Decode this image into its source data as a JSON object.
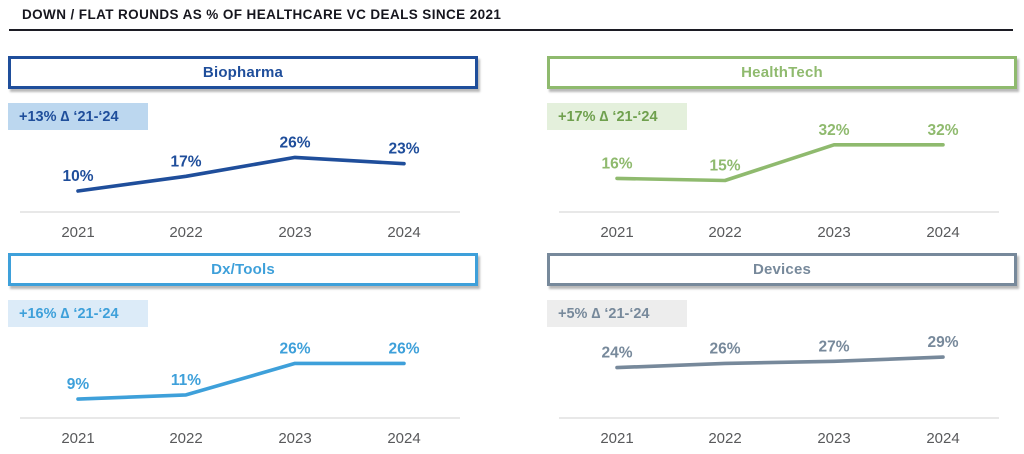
{
  "page_title": "DOWN / FLAT ROUNDS AS % OF HEALTHCARE VC DEALS SINCE 2021",
  "title_color": "#16161E",
  "axis": {
    "line_color": "#D9D9D9",
    "tick_color": "#58595B"
  },
  "chart_data": [
    {
      "type": "line",
      "title": "Biopharma",
      "delta_badge": "+13% ∆ ‘21-‘24",
      "categories": [
        "2021",
        "2022",
        "2023",
        "2024"
      ],
      "values": [
        10,
        17,
        26,
        23
      ],
      "data_labels": [
        "10%",
        "17%",
        "26%",
        "23%"
      ],
      "unit": "%",
      "ylim": [
        0,
        40
      ],
      "grid": false,
      "legend": "none",
      "accent_color": "#1F4E9B",
      "badge_bg_color": "#BCD7EF",
      "badge_text_color": "#1F4E9B"
    },
    {
      "type": "line",
      "title": "HealthTech",
      "delta_badge": "+17% ∆ ‘21-‘24",
      "categories": [
        "2021",
        "2022",
        "2023",
        "2024"
      ],
      "values": [
        16,
        15,
        32,
        32
      ],
      "data_labels": [
        "16%",
        "15%",
        "32%",
        "32%"
      ],
      "unit": "%",
      "ylim": [
        0,
        40
      ],
      "grid": false,
      "legend": "none",
      "accent_color": "#8FBA6E",
      "badge_bg_color": "#E4F0DC",
      "badge_text_color": "#6FA04E"
    },
    {
      "type": "line",
      "title": "Dx/Tools",
      "delta_badge": "+16% ∆ ‘21-‘24",
      "categories": [
        "2021",
        "2022",
        "2023",
        "2024"
      ],
      "values": [
        9,
        11,
        26,
        26
      ],
      "data_labels": [
        "9%",
        "11%",
        "26%",
        "26%"
      ],
      "unit": "%",
      "ylim": [
        0,
        40
      ],
      "grid": false,
      "legend": "none",
      "accent_color": "#3EA0DA",
      "badge_bg_color": "#DCEBF8",
      "badge_text_color": "#3EA0DA"
    },
    {
      "type": "line",
      "title": "Devices",
      "delta_badge": "+5% ∆ ‘21-‘24",
      "categories": [
        "2021",
        "2022",
        "2023",
        "2024"
      ],
      "values": [
        24,
        26,
        27,
        29
      ],
      "data_labels": [
        "24%",
        "26%",
        "27%",
        "29%"
      ],
      "unit": "%",
      "ylim": [
        0,
        40
      ],
      "grid": false,
      "legend": "none",
      "accent_color": "#77899B",
      "badge_bg_color": "#EDEDED",
      "badge_text_color": "#77899B"
    }
  ]
}
